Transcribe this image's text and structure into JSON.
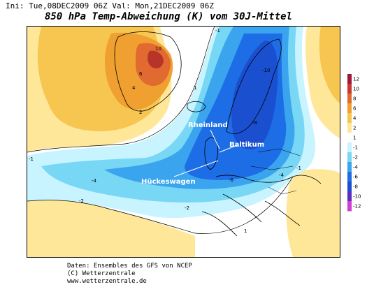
{
  "header": {
    "init_text": "Ini: Tue,08DEC2009 06Z Val: Mon,21DEC2009 06Z",
    "title": "850 hPa Temp-Abweichung (K) vom 30J-Mittel"
  },
  "map": {
    "labels": {
      "rheinland": "Rheinland",
      "baltikum": "Baltikum",
      "hueckeswagen": "Hückeswagen"
    },
    "contour_values": {
      "greenland_max": "10",
      "greenland_a": "6",
      "greenland_b": "4",
      "greenland_c": "2",
      "scand": "-10",
      "europe_a": "-6",
      "europe_b": "-8",
      "europe_c": "-4",
      "atlantic_a": "-4",
      "atlantic_b": "-2",
      "atlantic_c": "-1",
      "south_a": "-2",
      "south_b": "1",
      "east_a": "-1",
      "north_a": "1",
      "north_b": "-1"
    },
    "colors": {
      "ocean_base": "#ffffff",
      "warm_1": "#ffe79a",
      "warm_2": "#f7c650",
      "warm_3": "#f0a030",
      "warm_4": "#e06a30",
      "warm_5": "#b8342a",
      "cold_1": "#c8f4ff",
      "cold_2": "#78d7f5",
      "cold_3": "#3ba4ee",
      "cold_4": "#1d6ee6",
      "cold_5": "#1a4fd0"
    }
  },
  "colorbar": {
    "ticks": [
      "12",
      "10",
      "8",
      "6",
      "4",
      "2",
      "1",
      "-1",
      "-2",
      "-4",
      "-6",
      "-8",
      "-10",
      "-12"
    ],
    "colors": [
      "#a0183a",
      "#c83a30",
      "#e06a30",
      "#f0a030",
      "#f7c650",
      "#ffe79a",
      "#ffffff",
      "#c8f4ff",
      "#78d7f5",
      "#3ba4ee",
      "#1d6ee6",
      "#1a4fd0",
      "#5a2fc0",
      "#d040d0"
    ]
  },
  "footer": {
    "line1": "Daten: Ensembles des GFS von NCEP",
    "line2": "(C) Wetterzentrale",
    "line3": "www.wetterzentrale.de"
  }
}
